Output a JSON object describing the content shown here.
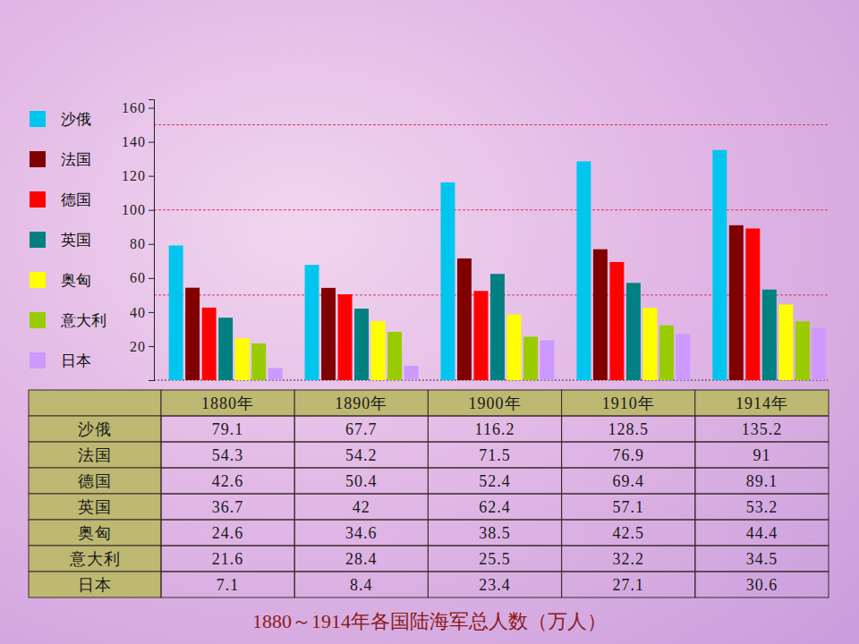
{
  "chart_data": {
    "type": "bar",
    "title": "1880～1914年各国陆海军总人数（万人）",
    "categories": [
      "1880年",
      "1890年",
      "1900年",
      "1910年",
      "1914年"
    ],
    "series": [
      {
        "name": "沙俄",
        "color": "#00c6ef",
        "values": [
          79.1,
          67.7,
          116.2,
          128.5,
          135.2
        ]
      },
      {
        "name": "法国",
        "color": "#800000",
        "values": [
          54.3,
          54.2,
          71.5,
          76.9,
          91
        ]
      },
      {
        "name": "德国",
        "color": "#ff0000",
        "values": [
          42.6,
          50.4,
          52.4,
          69.4,
          89.1
        ]
      },
      {
        "name": "英国",
        "color": "#008080",
        "values": [
          36.7,
          42,
          62.4,
          57.1,
          53.2
        ]
      },
      {
        "name": "奥匈",
        "color": "#ffff00",
        "values": [
          24.6,
          34.6,
          38.5,
          42.5,
          44.4
        ]
      },
      {
        "name": "意大利",
        "color": "#99cc00",
        "values": [
          21.6,
          28.4,
          25.5,
          32.2,
          34.5
        ]
      },
      {
        "name": "日本",
        "color": "#cc99ff",
        "values": [
          7.1,
          8.4,
          23.4,
          27.1,
          30.6
        ]
      }
    ],
    "ylim": [
      0,
      165
    ],
    "yticks": [
      20,
      40,
      60,
      80,
      100,
      120,
      140,
      160
    ],
    "reference_lines": [
      50,
      100,
      150
    ],
    "legend": "left",
    "grid": false
  }
}
